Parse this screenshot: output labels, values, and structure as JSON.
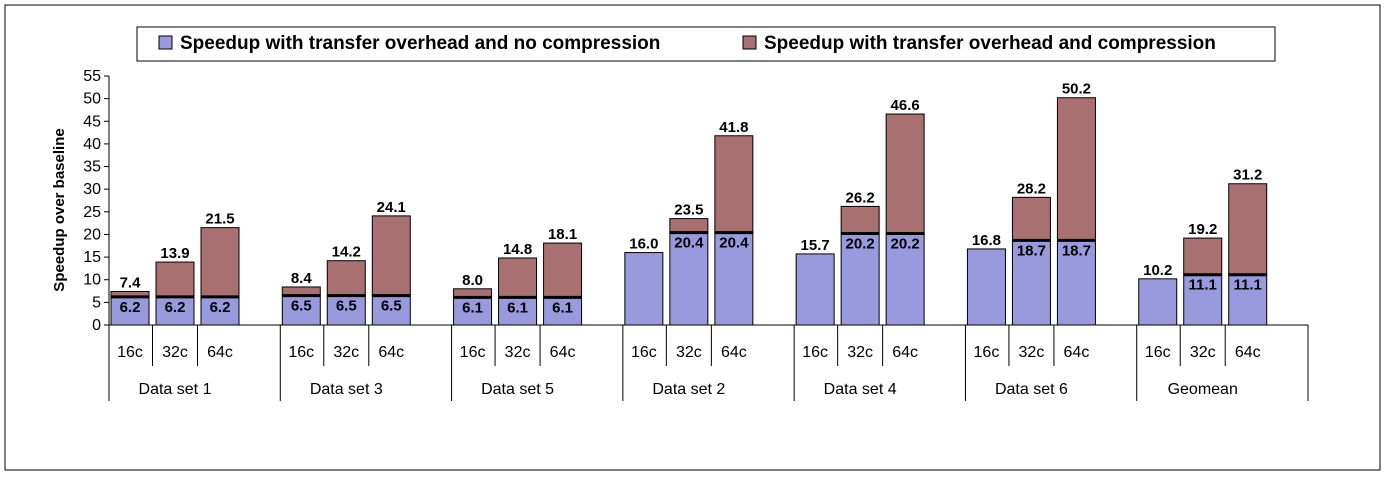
{
  "chart_data": {
    "type": "bar",
    "stacked": true,
    "ylabel": "Speedup over baseline",
    "ylim": [
      0,
      55
    ],
    "ytick_step": 5,
    "legend_position": "top",
    "groups": [
      "Data set 1",
      "Data set 3",
      "Data set 5",
      "Data set 2",
      "Data set 4",
      "Data set 6",
      "Geomean"
    ],
    "subcategories": [
      "16c",
      "32c",
      "64c"
    ],
    "series": [
      {
        "name": "Speedup with transfer overhead and no compression",
        "color": "#9999dd",
        "values": [
          [
            6.2,
            6.2,
            6.2
          ],
          [
            6.5,
            6.5,
            6.5
          ],
          [
            6.1,
            6.1,
            6.1
          ],
          [
            16.0,
            20.4,
            20.4
          ],
          [
            15.7,
            20.2,
            20.2
          ],
          [
            16.8,
            18.7,
            18.7
          ],
          [
            10.2,
            11.1,
            11.1
          ]
        ],
        "labels": [
          [
            "6.2",
            "6.2",
            "6.2"
          ],
          [
            "6.5",
            "6.5",
            "6.5"
          ],
          [
            "6.1",
            "6.1",
            "6.1"
          ],
          [
            "16.0",
            "20.4",
            "20.4"
          ],
          [
            "15.7",
            "20.2",
            "20.2"
          ],
          [
            "16.8",
            "18.7",
            "18.7"
          ],
          [
            "10.2",
            "11.1",
            "11.1"
          ]
        ]
      },
      {
        "name": "Speedup with transfer overhead and compression",
        "color": "#a87070",
        "totals": [
          [
            7.4,
            13.9,
            21.5
          ],
          [
            8.4,
            14.2,
            24.1
          ],
          [
            8.0,
            14.8,
            18.1
          ],
          [
            16.0,
            23.5,
            41.8
          ],
          [
            15.7,
            26.2,
            46.6
          ],
          [
            16.8,
            28.2,
            50.2
          ],
          [
            10.2,
            19.2,
            31.2
          ]
        ],
        "total_labels": [
          [
            "7.4",
            "13.9",
            "21.5"
          ],
          [
            "8.4",
            "14.2",
            "24.1"
          ],
          [
            "8.0",
            "14.8",
            "18.1"
          ],
          [
            "",
            "23.5",
            "41.8"
          ],
          [
            "",
            "26.2",
            "46.6"
          ],
          [
            "",
            "28.2",
            "50.2"
          ],
          [
            "",
            "19.2",
            "31.2"
          ]
        ]
      }
    ]
  }
}
